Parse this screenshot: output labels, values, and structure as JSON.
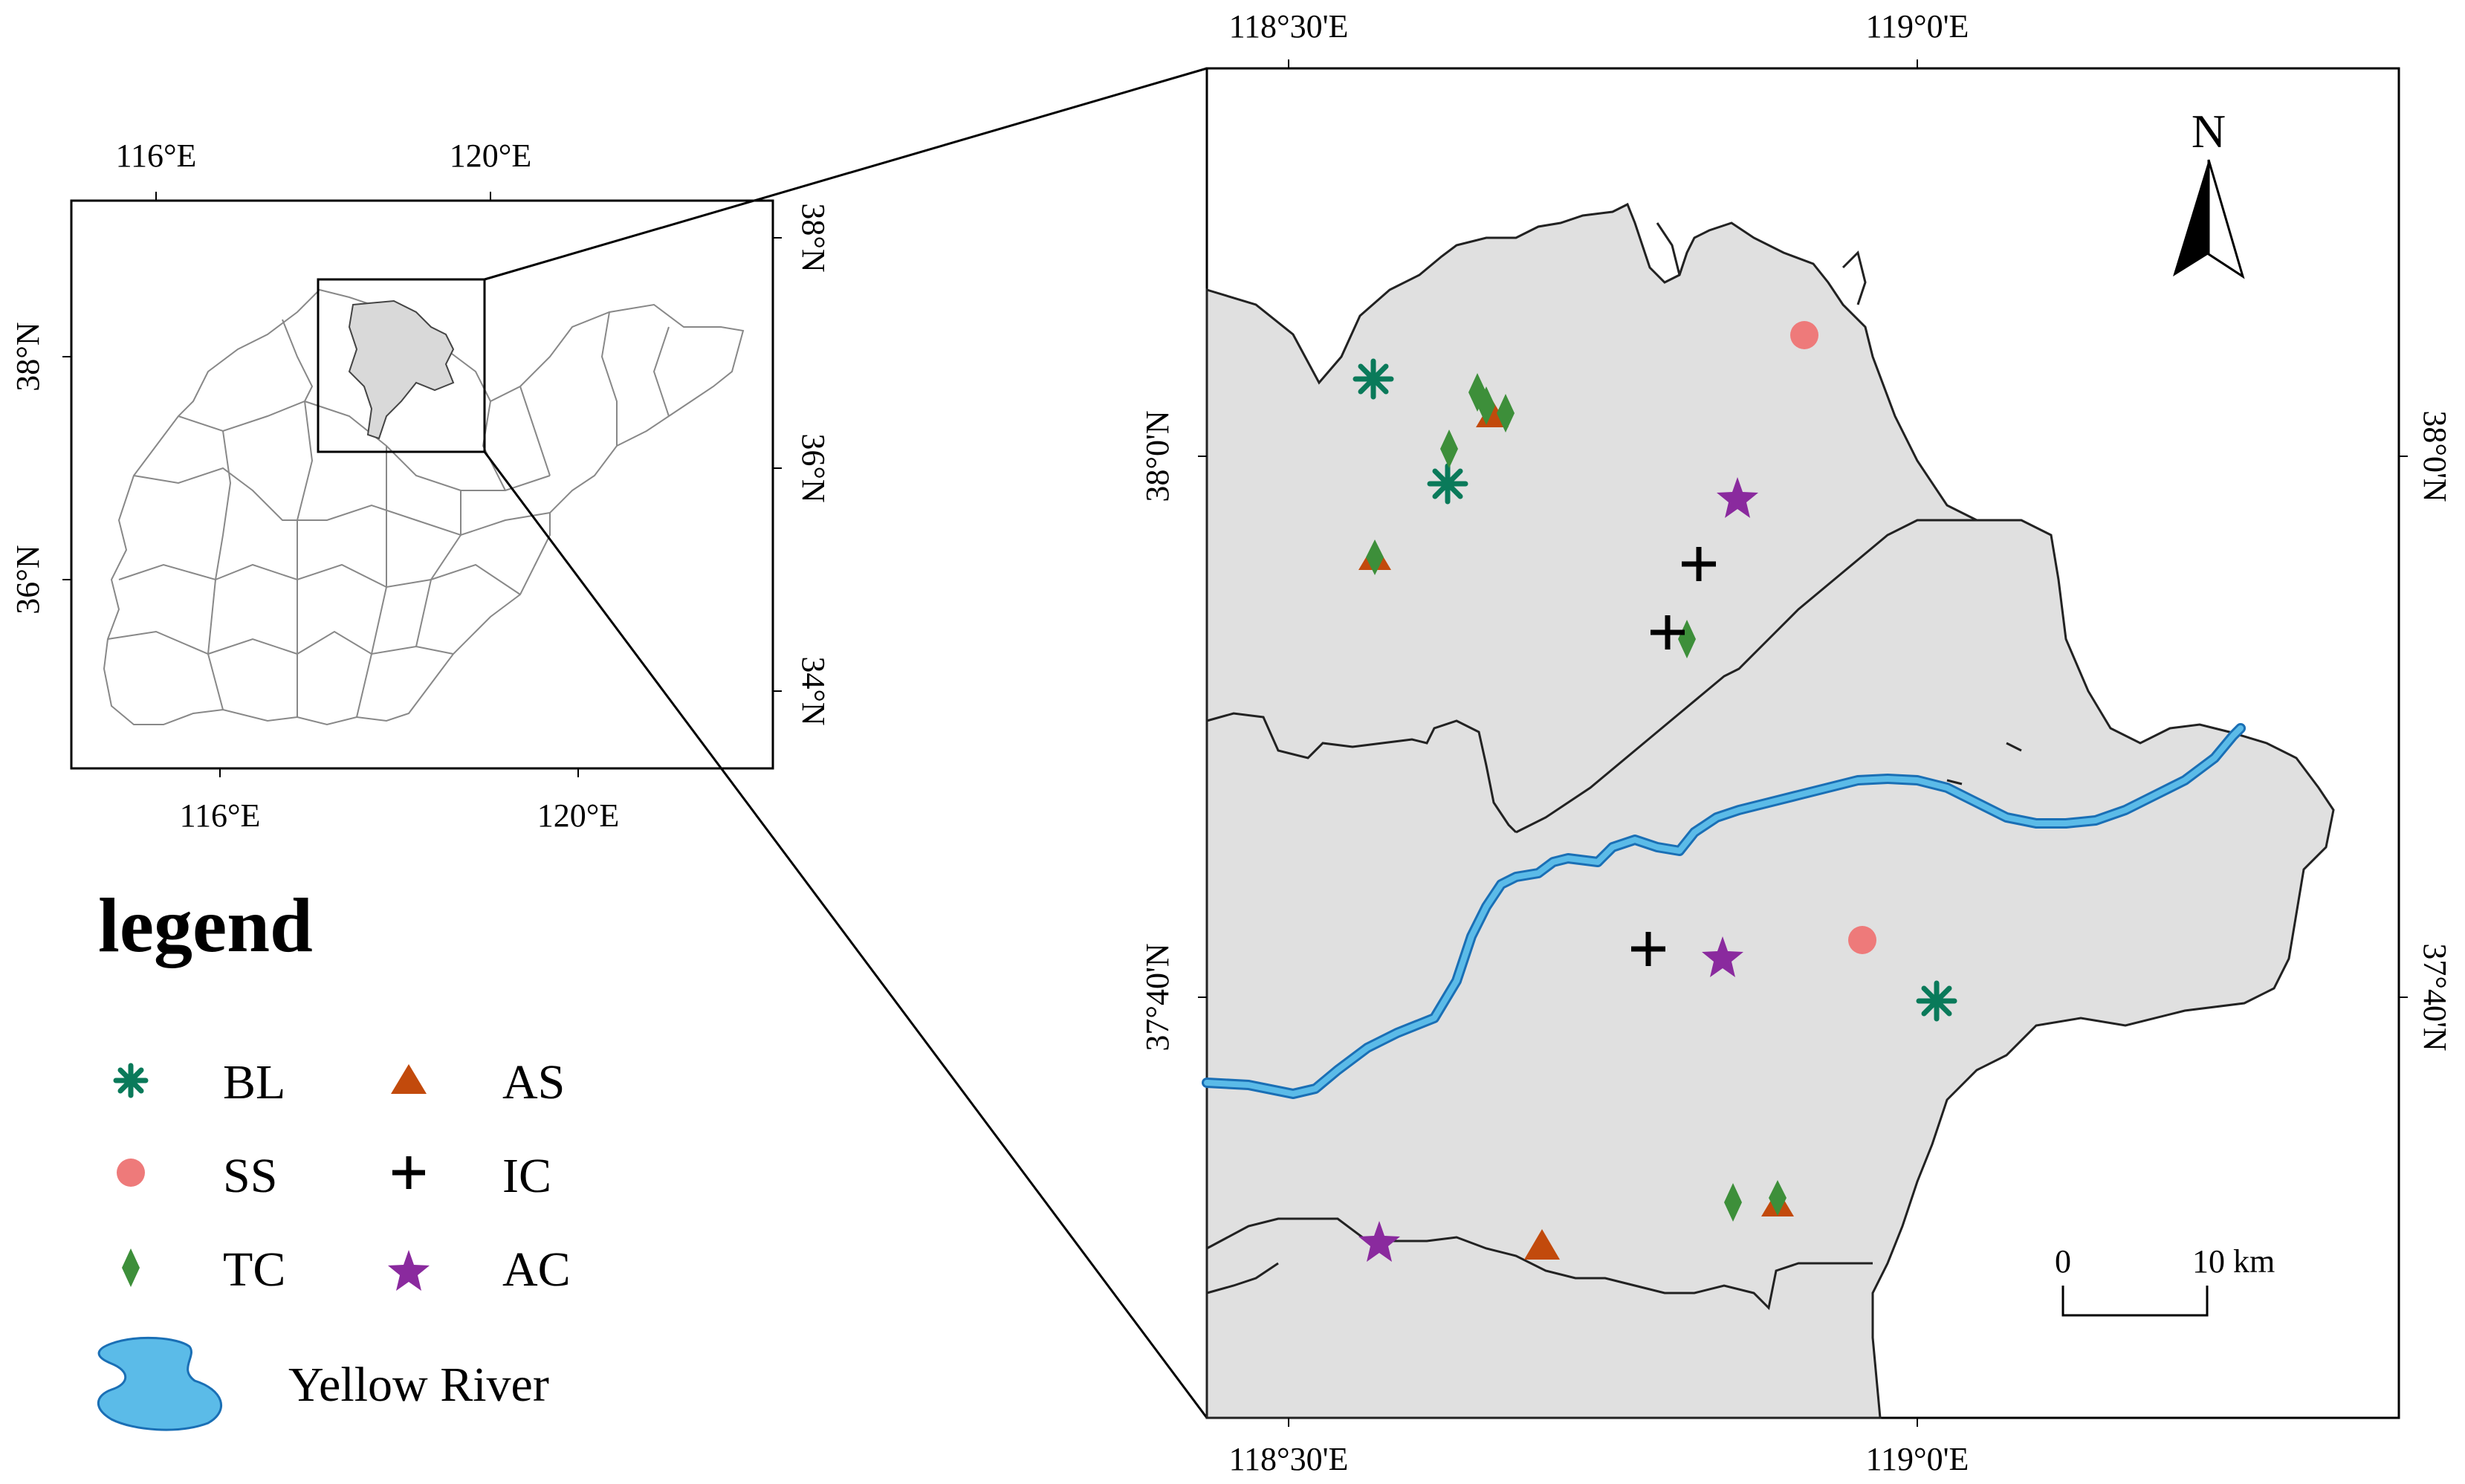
{
  "inset": {
    "top_ticks": [
      "116°E",
      "120°E"
    ],
    "bottom_ticks": [
      "116°E",
      "120°E"
    ],
    "left_ticks": [
      "38°N",
      "36°N"
    ],
    "right_ticks": [
      "38°N",
      "36°N",
      "34°N"
    ]
  },
  "main": {
    "top_ticks": [
      "118°30'E",
      "119°0'E"
    ],
    "bottom_ticks": [
      "118°30'E",
      "119°0'E"
    ],
    "left_ticks": [
      "38°0'N",
      "37°40'N"
    ],
    "right_ticks": [
      "38°0'N",
      "37°40'N"
    ],
    "north_label": "N",
    "scalebar": {
      "left": "0",
      "right": "10 km"
    }
  },
  "legend": {
    "title": "legend",
    "items": [
      {
        "code": "BL",
        "symbol": "asterisk",
        "color": "#0a7a5a"
      },
      {
        "code": "AS",
        "symbol": "triangle",
        "color": "#c24a0c"
      },
      {
        "code": "SS",
        "symbol": "circle",
        "color": "#ee7a7a"
      },
      {
        "code": "IC",
        "symbol": "cross",
        "color": "#000000"
      },
      {
        "code": "TC",
        "symbol": "diamond",
        "color": "#3d8f3a"
      },
      {
        "code": "AC",
        "symbol": "star",
        "color": "#8a2a9e"
      }
    ],
    "river_label": "Yellow River",
    "river_color": "#5bbbe8"
  }
}
